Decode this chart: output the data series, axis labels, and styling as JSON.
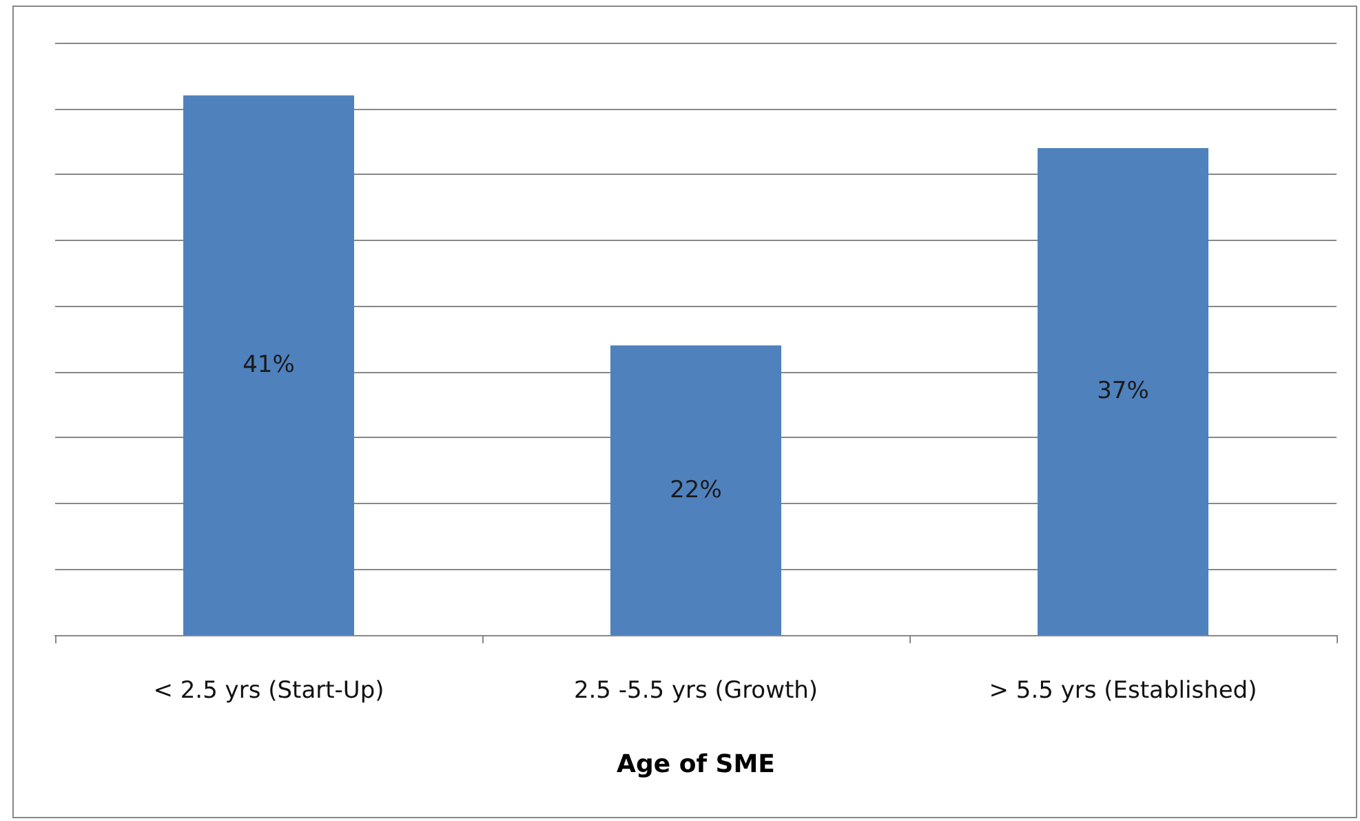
{
  "chart_data": {
    "type": "bar",
    "xlabel": "Age of SME",
    "categories": [
      "< 2.5 yrs (Start-Up)",
      "2.5 -5.5 yrs (Growth)",
      "> 5.5 yrs (Established)"
    ],
    "values": [
      41,
      22,
      37
    ],
    "color": "#4f81bd",
    "value_labels": [
      "41%",
      "22%",
      "37%"
    ],
    "ylim": [
      0,
      45
    ],
    "yticks": [
      {
        "value": 0,
        "label": null
      },
      {
        "value": 5,
        "label": null
      },
      {
        "value": 10,
        "label": null
      },
      {
        "value": 15,
        "label": null
      },
      {
        "value": 20,
        "label": null
      },
      {
        "value": 25,
        "label": null
      },
      {
        "value": 30,
        "label": null
      },
      {
        "value": 35,
        "label": null
      },
      {
        "value": 40,
        "label": null
      },
      {
        "value": 45,
        "label": null
      }
    ],
    "grid": "y",
    "tick_labels": "x"
  }
}
